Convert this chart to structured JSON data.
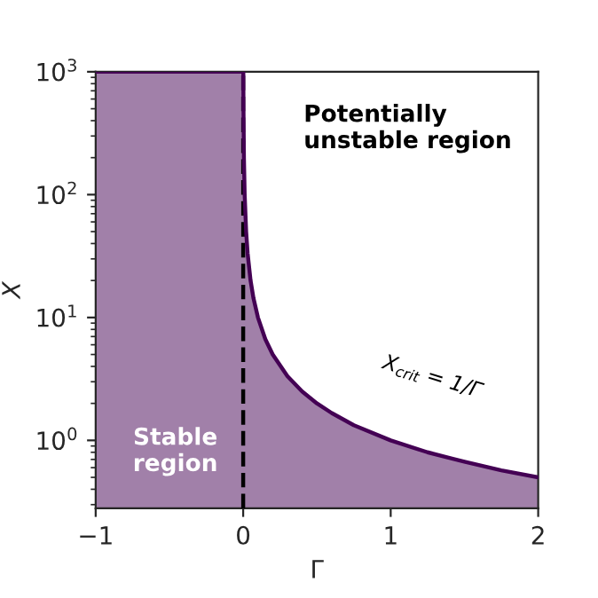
{
  "chart_data": {
    "type": "area",
    "xlabel": "Γ",
    "ylabel": "X",
    "log": "y",
    "xlim": [
      -1,
      2
    ],
    "xticks": [
      {
        "value": -1,
        "label": "−1"
      },
      0,
      1,
      2
    ],
    "ylim": [
      0.28,
      1000
    ],
    "yticks": [
      {
        "value": 1,
        "label": "10$^{0}$"
      },
      {
        "value": 10,
        "label": "10$^{1}$"
      },
      {
        "value": 100,
        "label": "10$^{2}$"
      },
      {
        "value": 1000,
        "label": "10$^{3}$"
      }
    ],
    "grid": false,
    "series": [
      {
        "color": "#440154",
        "x": [
          -1,
          0,
          0.001,
          0.002,
          0.005,
          0.01,
          0.02,
          0.03,
          0.05,
          0.07,
          0.1,
          0.15,
          0.2,
          0.3,
          0.4,
          0.5,
          0.6,
          0.75,
          1,
          1.25,
          1.5,
          1.75,
          2
        ],
        "values": [
          1000,
          1000,
          1000,
          500,
          200,
          100,
          50,
          33.3,
          20,
          14.3,
          10,
          6.67,
          5,
          3.33,
          2.5,
          2,
          1.67,
          1.33,
          1,
          0.8,
          0.67,
          0.57,
          0.5
        ]
      }
    ],
    "ref_lines": [
      {
        "axis": "x",
        "value": 0,
        "label": null,
        "color": "#000000",
        "line_style": "dashed"
      }
    ],
    "annotations": [
      "Potentially\nunstable region",
      "Stable\nregion",
      "X$_{crit}$ = 1/Γ"
    ]
  }
}
